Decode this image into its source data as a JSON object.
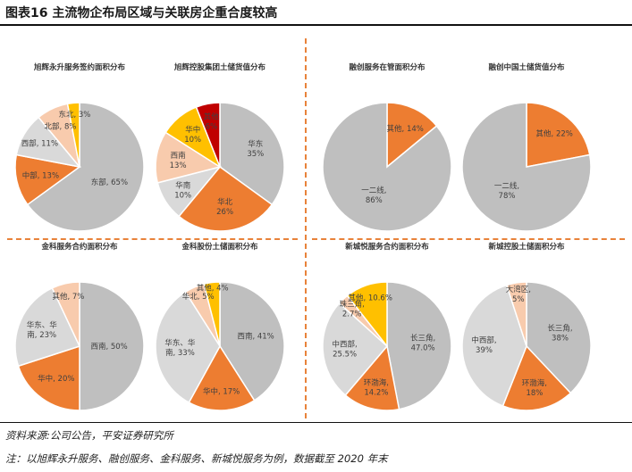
{
  "header": {
    "title": "图表16    主流物企布局区域与关联房企重合度较高"
  },
  "colors": {
    "orange": "#ED7D31",
    "gray": "#BFBFBF",
    "light_gray": "#D9D9D9",
    "peach": "#F8CBAD",
    "gold": "#FFC000",
    "dark_red": "#C00000",
    "separator": "#E8823A"
  },
  "chart_data": [
    {
      "type": "pie",
      "title": "旭辉永升服务签约面积分布",
      "slices": [
        {
          "label": "东部",
          "value": 65,
          "text": "东部, 65%"
        },
        {
          "label": "中部",
          "value": 13,
          "text": "中部, 13%"
        },
        {
          "label": "西部",
          "value": 11,
          "text": "西部, 11%"
        },
        {
          "label": "北部",
          "value": 8,
          "text": "北部, 8%"
        },
        {
          "label": "东北",
          "value": 3,
          "text": "东北, 3%"
        }
      ]
    },
    {
      "type": "pie",
      "title": "旭辉控股集团土储货值分布",
      "slices": [
        {
          "label": "华东",
          "value": 35,
          "text": "华东\n35%"
        },
        {
          "label": "华北",
          "value": 26,
          "text": "华北\n26%"
        },
        {
          "label": "华南",
          "value": 10,
          "text": "华南\n10%"
        },
        {
          "label": "西南",
          "value": 13,
          "text": "西南\n13%"
        },
        {
          "label": "华中",
          "value": 10,
          "text": "华中\n10%"
        },
        {
          "label": "其他",
          "value": 6,
          "text": "其他\n6%"
        }
      ]
    },
    {
      "type": "pie",
      "title": "融创服务在管面积分布",
      "slices": [
        {
          "label": "其他",
          "value": 14,
          "text": "其他, 14%"
        },
        {
          "label": "一二线",
          "value": 86,
          "text": "一二线,\n86%"
        }
      ]
    },
    {
      "type": "pie",
      "title": "融创中国土储货值分布",
      "slices": [
        {
          "label": "其他",
          "value": 22,
          "text": "其他, 22%"
        },
        {
          "label": "一二线",
          "value": 78,
          "text": "一二线,\n78%"
        }
      ]
    },
    {
      "type": "pie",
      "title": "金科服务合约面积分布",
      "slices": [
        {
          "label": "西南",
          "value": 50,
          "text": "西南, 50%"
        },
        {
          "label": "华中",
          "value": 20,
          "text": "华中, 20%"
        },
        {
          "label": "华东、华南",
          "value": 23,
          "text": "华东、华\n南, 23%"
        },
        {
          "label": "其他",
          "value": 7,
          "text": "其他, 7%"
        }
      ]
    },
    {
      "type": "pie",
      "title": "金科股份土储面积分布",
      "slices": [
        {
          "label": "西南",
          "value": 41,
          "text": "西南, 41%"
        },
        {
          "label": "华中",
          "value": 17,
          "text": "华中, 17%"
        },
        {
          "label": "华东、华南",
          "value": 33,
          "text": "华东、华\n南, 33%"
        },
        {
          "label": "华北",
          "value": 5,
          "text": "华北, 5%"
        },
        {
          "label": "其他",
          "value": 4,
          "text": "其他, 4%"
        }
      ]
    },
    {
      "type": "pie",
      "title": "新城悦服务合约面积分布",
      "slices": [
        {
          "label": "长三角",
          "value": 47.0,
          "text": "长三角,\n47.0%"
        },
        {
          "label": "环渤海",
          "value": 14.2,
          "text": "环渤海,\n14.2%"
        },
        {
          "label": "中西部",
          "value": 25.5,
          "text": "中西部,\n25.5%"
        },
        {
          "label": "珠三角",
          "value": 2.7,
          "text": "珠三角,\n2.7%"
        },
        {
          "label": "其他",
          "value": 10.6,
          "text": "其他, 10.6%"
        }
      ]
    },
    {
      "type": "pie",
      "title": "新城控股土储面积分布",
      "slices": [
        {
          "label": "长三角",
          "value": 38,
          "text": "长三角,\n38%"
        },
        {
          "label": "环渤海",
          "value": 18,
          "text": "环渤海,\n18%"
        },
        {
          "label": "中西部",
          "value": 39,
          "text": "中西部,\n39%"
        },
        {
          "label": "大湾区",
          "value": 5,
          "text": "大湾区,\n5%"
        }
      ]
    }
  ],
  "footer": {
    "source": "资料来源:公司公告，平安证券研究所",
    "note": "注：以旭辉永升服务、融创服务、金科服务、新城悦服务为例，数据截至 2020 年末"
  }
}
